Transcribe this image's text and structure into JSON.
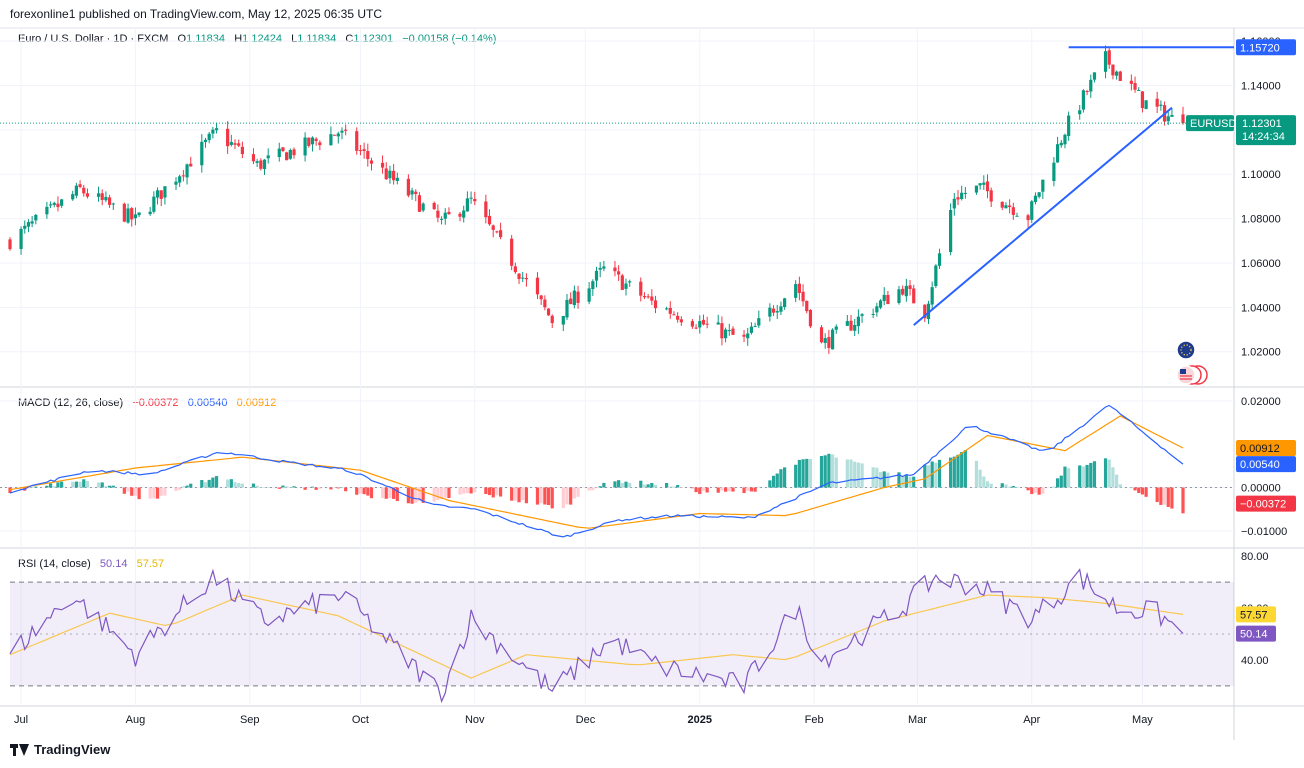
{
  "header": {
    "published": "forexonline1 published on TradingView.com, May 12, 2025 06:35 UTC"
  },
  "symbol": {
    "name": "Euro / U.S. Dollar · 1D · FXCM",
    "open_label": "O",
    "open": "1.11834",
    "high_label": "H",
    "high": "1.12424",
    "low_label": "L",
    "low": "1.11834",
    "close_label": "C",
    "close": "1.12301",
    "change": "−0.00158 (−0.14%)",
    "ticker": "EURUSD",
    "countdown": "14:24:34",
    "resistance_price": "1.15720"
  },
  "macd": {
    "label": "MACD (12, 26, close)",
    "histogram": "−0.00372",
    "macd": "0.00540",
    "signal": "0.00912"
  },
  "rsi": {
    "label": "RSI (14, close)",
    "value": "50.14",
    "ma": "57.57"
  },
  "colors": {
    "up": "#089981",
    "down": "#f23645",
    "macd_line": "#2962ff",
    "signal_line": "#ff9800",
    "rsi_line": "#7e57c2",
    "rsi_ma": "#fdd835",
    "trendline": "#2962ff"
  },
  "footer": {
    "brand": "TradingView",
    "logo_icon": "tradingview-logo-icon"
  },
  "icons": {
    "events_eu": "eu-flag-icon",
    "events_us": "us-flag-icon"
  },
  "chart_data": [
    {
      "type": "candlestick",
      "panel": "price",
      "title": "Euro / U.S. Dollar · 1D · FXCM",
      "x_ticks": [
        "Jul",
        "Aug",
        "Sep",
        "Oct",
        "Nov",
        "Dec",
        "2025",
        "Feb",
        "Mar",
        "Apr",
        "May"
      ],
      "y_ticks": [
        "1.02000",
        "1.04000",
        "1.06000",
        "1.08000",
        "1.10000",
        "1.12000",
        "1.14000",
        "1.16000"
      ],
      "ylim": [
        1.005,
        1.165
      ],
      "last_close": 1.12301,
      "anchors": [
        [
          "2024-06-28",
          1.07
        ],
        [
          "2024-07-17",
          1.093
        ],
        [
          "2024-08-01",
          1.079
        ],
        [
          "2024-08-23",
          1.119
        ],
        [
          "2024-09-03",
          1.104
        ],
        [
          "2024-09-25",
          1.119
        ],
        [
          "2024-10-23",
          1.078
        ],
        [
          "2024-10-31",
          1.088
        ],
        [
          "2024-11-22",
          1.034
        ],
        [
          "2024-12-06",
          1.057
        ],
        [
          "2024-12-20",
          1.041
        ],
        [
          "2025-01-13",
          1.025
        ],
        [
          "2025-01-27",
          1.051
        ],
        [
          "2025-02-03",
          1.023
        ],
        [
          "2025-02-25",
          1.049
        ],
        [
          "2025-03-03",
          1.038
        ],
        [
          "2025-03-11",
          1.09
        ],
        [
          "2025-03-18",
          1.094
        ],
        [
          "2025-03-31",
          1.081
        ],
        [
          "2025-04-10",
          1.12
        ],
        [
          "2025-04-21",
          1.152
        ],
        [
          "2025-05-01",
          1.133
        ],
        [
          "2025-05-09",
          1.125
        ],
        [
          "2025-05-12",
          1.123
        ]
      ],
      "annotations": [
        {
          "type": "horizontal-line",
          "value": 1.1572,
          "from": "2025-04-11",
          "to": "2025-05-31",
          "label": "1.15720"
        },
        {
          "type": "trendline",
          "from": [
            "2025-02-28",
            1.032
          ],
          "to": [
            "2025-05-09",
            1.13
          ]
        }
      ]
    },
    {
      "type": "macd",
      "panel": "macd",
      "title": "MACD (12, 26, close)",
      "y_ticks": [
        "−0.01000",
        "0.00000",
        "0.02000"
      ],
      "ylim": [
        -0.0135,
        0.0225
      ],
      "macd_anchors": [
        [
          "2024-06-28",
          -0.001
        ],
        [
          "2024-07-20",
          0.004
        ],
        [
          "2024-08-05",
          0.003
        ],
        [
          "2024-08-24",
          0.0083
        ],
        [
          "2024-09-10",
          0.006
        ],
        [
          "2024-09-28",
          0.004
        ],
        [
          "2024-10-20",
          -0.004
        ],
        [
          "2024-11-01",
          -0.005
        ],
        [
          "2024-11-25",
          -0.0115
        ],
        [
          "2024-12-10",
          -0.0075
        ],
        [
          "2024-12-25",
          -0.0065
        ],
        [
          "2025-01-15",
          -0.007
        ],
        [
          "2025-02-05",
          0.001
        ],
        [
          "2025-02-28",
          0.003
        ],
        [
          "2025-03-15",
          0.0145
        ],
        [
          "2025-04-05",
          0.008
        ],
        [
          "2025-04-22",
          0.019
        ],
        [
          "2025-05-12",
          0.0054
        ]
      ],
      "signal_anchors": [
        [
          "2024-06-28",
          -0.0005
        ],
        [
          "2024-08-01",
          0.0045
        ],
        [
          "2024-08-30",
          0.007
        ],
        [
          "2024-10-01",
          0.004
        ],
        [
          "2024-10-25",
          -0.003
        ],
        [
          "2024-12-01",
          -0.0095
        ],
        [
          "2025-01-01",
          -0.006
        ],
        [
          "2025-01-25",
          -0.0065
        ],
        [
          "2025-02-20",
          0.0
        ],
        [
          "2025-03-03",
          0.002
        ],
        [
          "2025-03-20",
          0.012
        ],
        [
          "2025-04-10",
          0.0085
        ],
        [
          "2025-04-25",
          0.0165
        ],
        [
          "2025-05-12",
          0.0091
        ]
      ],
      "last": {
        "histogram": -0.00372,
        "macd": 0.0054,
        "signal": 0.00912
      }
    },
    {
      "type": "line",
      "panel": "rsi",
      "title": "RSI (14, close)",
      "y_ticks": [
        "40.00",
        "60.00",
        "80.00"
      ],
      "ylim": [
        23,
        82
      ],
      "bands": [
        30,
        70
      ],
      "rsi_anchors": [
        [
          "2024-06-28",
          42
        ],
        [
          "2024-07-15",
          65
        ],
        [
          "2024-08-01",
          42
        ],
        [
          "2024-08-22",
          72
        ],
        [
          "2024-09-05",
          55
        ],
        [
          "2024-09-26",
          65
        ],
        [
          "2024-10-10",
          45
        ],
        [
          "2024-10-23",
          27
        ],
        [
          "2024-10-31",
          56
        ],
        [
          "2024-11-22",
          28
        ],
        [
          "2024-12-08",
          48
        ],
        [
          "2024-12-20",
          38
        ],
        [
          "2025-01-13",
          30
        ],
        [
          "2025-01-27",
          60
        ],
        [
          "2025-02-03",
          40
        ],
        [
          "2025-02-25",
          60
        ],
        [
          "2025-03-06",
          72
        ],
        [
          "2025-03-18",
          68
        ],
        [
          "2025-04-01",
          56
        ],
        [
          "2025-04-14",
          72
        ],
        [
          "2025-04-24",
          60
        ],
        [
          "2025-05-05",
          58
        ],
        [
          "2025-05-12",
          50
        ]
      ],
      "ma_anchors": [
        [
          "2024-06-28",
          42
        ],
        [
          "2024-07-25",
          58
        ],
        [
          "2024-08-10",
          53
        ],
        [
          "2024-08-30",
          65
        ],
        [
          "2024-09-25",
          57
        ],
        [
          "2024-10-31",
          33
        ],
        [
          "2024-11-15",
          42
        ],
        [
          "2024-12-15",
          38
        ],
        [
          "2025-01-10",
          42
        ],
        [
          "2025-01-25",
          40
        ],
        [
          "2025-02-20",
          55
        ],
        [
          "2025-03-20",
          65
        ],
        [
          "2025-04-05",
          64
        ],
        [
          "2025-04-20",
          62
        ],
        [
          "2025-05-12",
          57.57
        ]
      ]
    }
  ]
}
